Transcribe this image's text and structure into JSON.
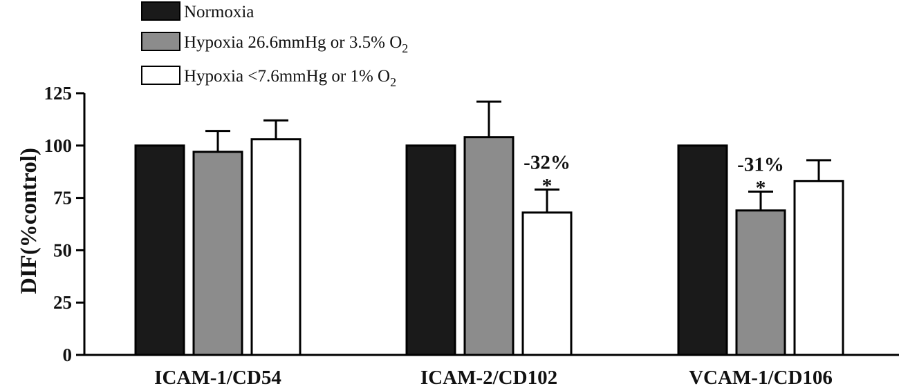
{
  "chart_data": {
    "type": "bar",
    "title": "",
    "xlabel": "",
    "ylabel": "DIF(%control)",
    "ylim": [
      0,
      125
    ],
    "yticks": [
      0,
      25,
      50,
      75,
      100,
      125
    ],
    "categories": [
      "ICAM-1/CD54",
      "ICAM-2/CD102",
      "VCAM-1/CD106"
    ],
    "series": [
      {
        "name": "Normoxia",
        "color": "#1a1a1a",
        "values": [
          100,
          100,
          100
        ],
        "errors": [
          0,
          0,
          0
        ]
      },
      {
        "name": "Hypoxia 26.6mmHg or 3.5% O",
        "name_subscript": "2",
        "color": "#8c8c8c",
        "values": [
          97,
          104,
          69
        ],
        "errors": [
          10,
          17,
          9
        ]
      },
      {
        "name": "Hypoxia <7.6mmHg or 1% O",
        "name_subscript": "2",
        "color": "#ffffff",
        "values": [
          103,
          68,
          83
        ],
        "errors": [
          9,
          11,
          10
        ]
      }
    ],
    "annotations": [
      {
        "category": 1,
        "series": 2,
        "significance": "*",
        "text": "-32%"
      },
      {
        "category": 2,
        "series": 1,
        "significance": "*",
        "text": "-31%"
      }
    ],
    "legend_position": "top-left",
    "grid": false
  }
}
